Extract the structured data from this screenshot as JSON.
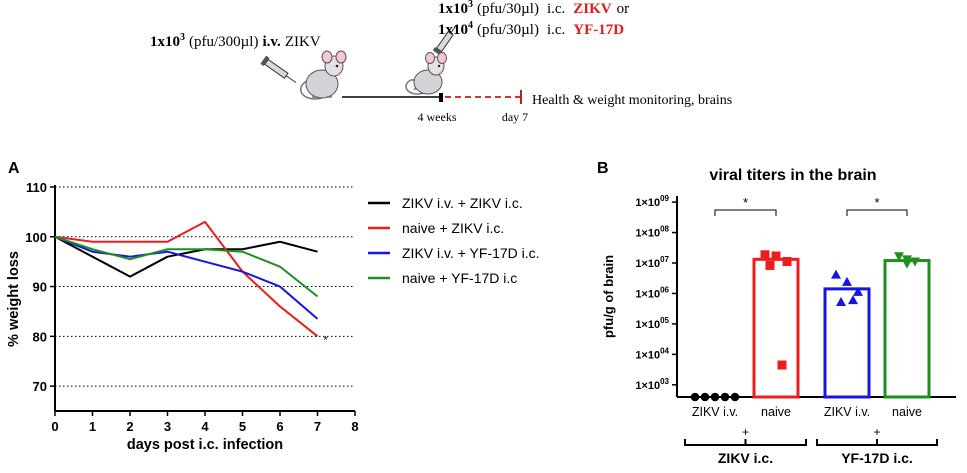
{
  "schematic": {
    "iv_dose": "1x10",
    "iv_exp": "3",
    "iv_unit": "(pfu/300µl)",
    "iv_route": "i.v.",
    "iv_virus": "ZIKV",
    "ic_dose1": "1x10",
    "ic_exp1": "3",
    "ic_unit1": "(pfu/30µl)",
    "ic_route1": "i.c.",
    "ic_virus1": "ZIKV",
    "ic_or": "or",
    "ic_dose2": "1x10",
    "ic_exp2": "4",
    "ic_unit2": "(pfu/30µl)",
    "ic_route2": "i.c.",
    "ic_virus2": "YF-17D",
    "label_4weeks": "4 weeks",
    "label_day7": "day 7",
    "label_monitor": "Health & weight monitoring, brains",
    "colors": {
      "red": "#e8191d",
      "black": "#000000"
    }
  },
  "panel_a": {
    "letter": "A",
    "note_star": "*",
    "chart_data": {
      "type": "line",
      "title": "",
      "xlabel": "days post i.c. infection",
      "ylabel": "% weight loss",
      "xlim": [
        0,
        8
      ],
      "ylim": [
        65,
        110
      ],
      "xticks": [
        "0",
        "1",
        "2",
        "3",
        "4",
        "5",
        "6",
        "7",
        "8"
      ],
      "yticks": [
        "70",
        "80",
        "90",
        "100",
        "110"
      ],
      "gridlines_y": [
        70,
        80,
        90,
        100,
        110
      ],
      "legend_position": "right",
      "series": [
        {
          "name": "ZIKV i.v. + ZIKV i.c.",
          "color": "#000000",
          "x": [
            0,
            1,
            2,
            3,
            4,
            5,
            6,
            7
          ],
          "values": [
            100,
            96,
            92,
            96,
            97.5,
            97.5,
            99,
            97
          ]
        },
        {
          "name": "naive + ZIKV i.c.",
          "color": "#ee1c1c",
          "x": [
            0,
            1,
            2,
            3,
            4,
            5,
            6,
            7
          ],
          "values": [
            100,
            99,
            99,
            99,
            103,
            93,
            86,
            80
          ]
        },
        {
          "name": "ZIKV i.v. + YF-17D i.c.",
          "color": "#1515e6",
          "x": [
            0,
            1,
            2,
            3,
            4,
            5,
            6,
            7
          ],
          "values": [
            100,
            97,
            96,
            97,
            95,
            93,
            90,
            83.5
          ]
        },
        {
          "name": "naive + YF-17D i.c",
          "color": "#1f8f1f",
          "x": [
            0,
            1,
            2,
            3,
            4,
            5,
            6,
            7
          ],
          "values": [
            100,
            97.5,
            95.5,
            97.5,
            97.5,
            97,
            94,
            88
          ]
        }
      ]
    }
  },
  "panel_b": {
    "letter": "B",
    "chart_data": {
      "type": "bar",
      "title": "viral titers in the brain",
      "ylabel": "pfu/g of brain",
      "scale": "log10",
      "ylim_log10": [
        2.6,
        9.2
      ],
      "ytick_base": "1×10",
      "ytick_exps": [
        "03",
        "04",
        "05",
        "06",
        "07",
        "08",
        "09"
      ],
      "categories": [
        "ZIKV i.v.",
        "naive",
        "ZIKV i.v.",
        "naive"
      ],
      "group_labels": [
        "ZIKV i.c.",
        "YF-17D i.c."
      ],
      "group_plus": "+",
      "significance": [
        "*",
        "*"
      ],
      "bars": [
        {
          "category": "ZIKV i.v.",
          "group": "ZIKV i.c.",
          "color": "#000000",
          "mean_log10": null,
          "marker": "circle",
          "points_log10": [
            2.55,
            2.55,
            2.55,
            2.55,
            2.55
          ]
        },
        {
          "category": "naive",
          "group": "ZIKV i.c.",
          "color": "#ee1c1c",
          "mean_log10": 7.12,
          "marker": "square",
          "points_log10": [
            7.27,
            7.23,
            7.05,
            6.92,
            3.65
          ]
        },
        {
          "category": "ZIKV i.v.",
          "group": "YF-17D i.c.",
          "color": "#1515e6",
          "mean_log10": 6.15,
          "marker": "triangle",
          "points_log10": [
            6.62,
            6.38,
            6.05,
            5.72,
            5.78
          ]
        },
        {
          "category": "naive",
          "group": "YF-17D i.c.",
          "color": "#1f8f1f",
          "mean_log10": 7.08,
          "marker": "triangle-down",
          "points_log10": [
            7.22,
            7.12,
            7.05,
            6.98
          ]
        }
      ]
    }
  }
}
